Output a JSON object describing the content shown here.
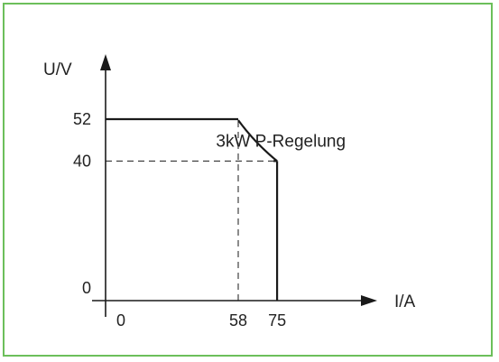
{
  "colors": {
    "frame": "#6cbf5a",
    "line": "#1a1a1a",
    "text": "#222222"
  },
  "chart_data": {
    "type": "line",
    "title": "",
    "xlabel": "I/A",
    "ylabel": "U/V",
    "x_ticks": [
      {
        "value": 0,
        "label": "0"
      },
      {
        "value": 58,
        "label": "58"
      },
      {
        "value": 75,
        "label": "75"
      }
    ],
    "y_ticks": [
      {
        "value": 0,
        "label": "0"
      },
      {
        "value": 40,
        "label": "40"
      },
      {
        "value": 52,
        "label": "52"
      }
    ],
    "series": [
      {
        "points": [
          {
            "x": 0,
            "y": 52
          },
          {
            "x": 58,
            "y": 52
          },
          {
            "x": 75,
            "y": 40
          },
          {
            "x": 75,
            "y": 0
          }
        ],
        "segments": [
          "constant-voltage",
          "constant-power-3kW",
          "current-limit"
        ]
      }
    ],
    "annotations": [
      {
        "text": "3kW P-Regelung",
        "x": 70,
        "y": 47
      }
    ],
    "reference_lines": [
      {
        "type": "vertical",
        "x": 58,
        "from_y": 0,
        "to_y": 52,
        "style": "dashed"
      },
      {
        "type": "horizontal",
        "y": 40,
        "from_x": 0,
        "to_x": 75,
        "style": "dashed"
      }
    ],
    "power_watts": 3000,
    "grid": false
  }
}
